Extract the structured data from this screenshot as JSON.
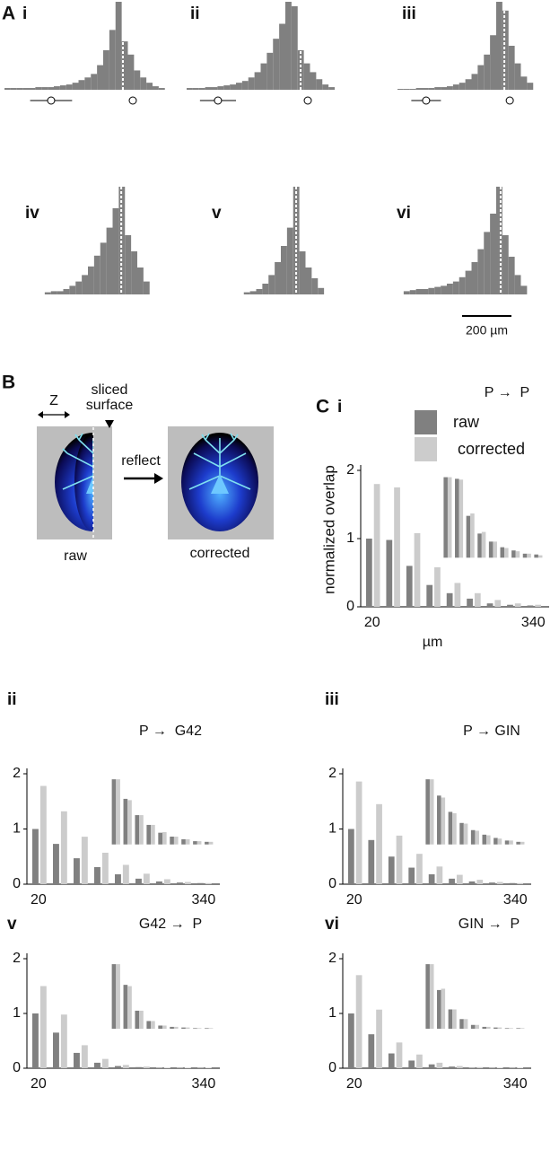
{
  "labels": [
    "A",
    "B",
    "C"
  ],
  "scale_bar": {
    "value": 200,
    "label": "200 µm"
  },
  "diagram": {
    "z": "Z",
    "sliced": "sliced",
    "surface": "surface",
    "reflect": "reflect",
    "raw": "raw",
    "corrected": "corrected"
  },
  "chart_data": [
    {
      "type": "histogram",
      "panel": "i",
      "color": "#808080",
      "bins": [
        0,
        25,
        50,
        75,
        100,
        125,
        150,
        175,
        200,
        225,
        250,
        275,
        300,
        325,
        350,
        375,
        400,
        425,
        450,
        475,
        500,
        525,
        550,
        575,
        600,
        625,
        650,
        675,
        700
      ],
      "values": [
        2,
        2,
        2,
        2,
        2,
        3,
        3,
        3,
        4,
        5,
        6,
        8,
        11,
        14,
        18,
        28,
        45,
        68,
        100,
        55,
        40,
        22,
        14,
        8,
        4,
        2,
        0,
        0
      ],
      "surface": 480,
      "markers": [
        {
          "value": 189,
          "error": 85
        },
        {
          "value": 520,
          "error": 10
        }
      ]
    },
    {
      "type": "histogram",
      "panel": "ii",
      "color": "#808080",
      "bins": [
        0,
        25,
        50,
        75,
        100,
        125,
        150,
        175,
        200,
        225,
        250,
        275,
        300,
        325,
        350,
        375,
        400,
        425,
        450,
        475,
        500,
        525,
        550,
        575,
        600,
        625,
        650,
        675,
        700
      ],
      "values": [
        2,
        2,
        2,
        3,
        3,
        4,
        5,
        6,
        8,
        10,
        14,
        20,
        30,
        42,
        58,
        75,
        100,
        95,
        45,
        30,
        20,
        12,
        6,
        3,
        0,
        0,
        0,
        0
      ],
      "surface": 462,
      "markers": [
        {
          "value": 127,
          "error": 73
        },
        {
          "value": 491,
          "error": 10
        }
      ]
    },
    {
      "type": "histogram",
      "panel": "iii",
      "color": "#808080",
      "bins": [
        0,
        25,
        50,
        75,
        100,
        125,
        150,
        175,
        200,
        225,
        250,
        275,
        300,
        325,
        350,
        375,
        400,
        425,
        450,
        475,
        500,
        525,
        550,
        575,
        600,
        625,
        650,
        675,
        700
      ],
      "values": [
        1,
        1,
        1,
        2,
        2,
        2,
        3,
        3,
        4,
        6,
        8,
        12,
        18,
        28,
        40,
        62,
        100,
        90,
        50,
        30,
        15,
        8,
        0,
        0,
        0,
        0,
        0,
        0
      ],
      "surface": 433,
      "markers": [
        {
          "value": 116,
          "error": 60
        },
        {
          "value": 455,
          "error": 10
        }
      ]
    },
    {
      "type": "histogram",
      "panel": "iv",
      "color": "#808080",
      "bins": [
        0,
        25,
        50,
        75,
        100,
        125,
        150,
        175,
        200,
        225,
        250,
        275,
        300,
        325,
        350,
        375,
        400,
        425,
        450,
        475,
        500,
        525,
        550,
        575,
        600,
        625,
        650,
        675,
        700
      ],
      "values": [
        0,
        2,
        3,
        3,
        5,
        8,
        12,
        18,
        26,
        36,
        48,
        62,
        80,
        100,
        55,
        40,
        25,
        12,
        0,
        0,
        0,
        0,
        0,
        0,
        0,
        0,
        0,
        0
      ],
      "surface": 335
    },
    {
      "type": "histogram",
      "panel": "v",
      "color": "#808080",
      "bins": [
        0,
        25,
        50,
        75,
        100,
        125,
        150,
        175,
        200,
        225,
        250,
        275,
        300,
        325,
        350,
        375,
        400,
        425,
        450,
        475,
        500,
        525,
        550,
        575,
        600,
        625,
        650,
        675,
        700
      ],
      "values": [
        0,
        0,
        2,
        3,
        5,
        10,
        18,
        30,
        45,
        62,
        100,
        40,
        25,
        15,
        6,
        0,
        0,
        0,
        0,
        0,
        0,
        0,
        0,
        0,
        0,
        0,
        0,
        0
      ],
      "surface": 262
    },
    {
      "type": "histogram",
      "panel": "vi",
      "color": "#808080",
      "bins": [
        0,
        25,
        50,
        75,
        100,
        125,
        150,
        175,
        200,
        225,
        250,
        275,
        300,
        325,
        350,
        375,
        400,
        425,
        450,
        475,
        500,
        525,
        550,
        575,
        600,
        625,
        650,
        675,
        700
      ],
      "values": [
        0,
        3,
        4,
        5,
        5,
        6,
        7,
        8,
        10,
        12,
        16,
        22,
        30,
        42,
        58,
        75,
        100,
        55,
        35,
        18,
        8,
        0,
        0,
        0,
        0,
        0,
        0,
        0
      ],
      "surface": 418
    },
    {
      "type": "bar",
      "panel": "i",
      "title": "P →  P",
      "ylabel": "normalized overlap",
      "xlabel": "µm",
      "categories": [
        20,
        null,
        null,
        null,
        null,
        null,
        null,
        null,
        340
      ],
      "ylim": [
        0,
        2
      ],
      "yticks": [
        0,
        1,
        2
      ],
      "series": [
        {
          "name": "raw",
          "color": "#808080",
          "values": [
            1.0,
            0.98,
            0.6,
            0.32,
            0.2,
            0.12,
            0.05,
            0.03,
            0.02
          ]
        },
        {
          "name": "corrected",
          "color": "#cccccc",
          "values": [
            1.8,
            1.75,
            1.08,
            0.58,
            0.35,
            0.2,
            0.1,
            0.05,
            0.03
          ]
        }
      ],
      "inset": [
        {
          "values": [
            1,
            0.98,
            0.52,
            0.3,
            0.2,
            0.13,
            0.09,
            0.05,
            0.04
          ]
        },
        {
          "values": [
            1,
            0.97,
            0.55,
            0.32,
            0.2,
            0.12,
            0.08,
            0.05,
            0.03
          ]
        }
      ]
    },
    {
      "type": "bar",
      "panel": "ii",
      "title": "P →  G42",
      "categories": [
        20,
        null,
        null,
        null,
        null,
        null,
        null,
        null,
        340
      ],
      "ylim": [
        0,
        2
      ],
      "yticks": [
        0,
        1,
        2
      ],
      "series": [
        {
          "color": "#808080",
          "values": [
            1.0,
            0.73,
            0.47,
            0.31,
            0.18,
            0.1,
            0.05,
            0.03,
            0.02
          ]
        },
        {
          "color": "#cccccc",
          "values": [
            1.78,
            1.32,
            0.86,
            0.57,
            0.35,
            0.19,
            0.09,
            0.04,
            0.02
          ]
        }
      ],
      "inset": [
        {
          "values": [
            1,
            0.7,
            0.45,
            0.3,
            0.18,
            0.12,
            0.08,
            0.05,
            0.04
          ]
        },
        {
          "values": [
            1,
            0.68,
            0.45,
            0.3,
            0.19,
            0.12,
            0.08,
            0.05,
            0.04
          ]
        }
      ]
    },
    {
      "type": "bar",
      "panel": "iii",
      "title": "P → GIN",
      "categories": [
        20,
        null,
        null,
        null,
        null,
        null,
        null,
        null,
        340
      ],
      "ylim": [
        0,
        2
      ],
      "yticks": [
        0,
        1,
        2
      ],
      "series": [
        {
          "color": "#808080",
          "values": [
            1.0,
            0.8,
            0.5,
            0.3,
            0.18,
            0.1,
            0.05,
            0.03,
            0.02
          ]
        },
        {
          "color": "#cccccc",
          "values": [
            1.86,
            1.45,
            0.88,
            0.55,
            0.32,
            0.17,
            0.08,
            0.04,
            0.02
          ]
        }
      ],
      "inset": [
        {
          "values": [
            1,
            0.75,
            0.5,
            0.33,
            0.22,
            0.15,
            0.1,
            0.06,
            0.04
          ]
        },
        {
          "values": [
            1,
            0.72,
            0.48,
            0.32,
            0.21,
            0.14,
            0.09,
            0.06,
            0.04
          ]
        }
      ]
    },
    {
      "type": "bar",
      "panel": "v",
      "title": "G42 →  P",
      "categories": [
        20,
        null,
        null,
        null,
        null,
        null,
        null,
        null,
        340
      ],
      "ylim": [
        0,
        2
      ],
      "yticks": [
        0,
        1,
        2
      ],
      "series": [
        {
          "color": "#808080",
          "values": [
            1.0,
            0.65,
            0.28,
            0.1,
            0.04,
            0.02,
            0.01,
            0.01,
            0.01
          ]
        },
        {
          "color": "#cccccc",
          "values": [
            1.5,
            0.98,
            0.42,
            0.17,
            0.06,
            0.03,
            0.01,
            0.01,
            0.01
          ]
        }
      ],
      "inset": [
        {
          "values": [
            1,
            0.68,
            0.28,
            0.12,
            0.05,
            0.03,
            0.02,
            0.01,
            0.01
          ]
        },
        {
          "values": [
            1,
            0.66,
            0.28,
            0.12,
            0.05,
            0.03,
            0.02,
            0.01,
            0.01
          ]
        }
      ]
    },
    {
      "type": "bar",
      "panel": "vi",
      "title": "GIN →  P",
      "categories": [
        20,
        null,
        null,
        null,
        null,
        null,
        null,
        null,
        340
      ],
      "ylim": [
        0,
        2
      ],
      "yticks": [
        0,
        1,
        2
      ],
      "series": [
        {
          "color": "#808080",
          "values": [
            1.0,
            0.62,
            0.27,
            0.14,
            0.07,
            0.03,
            0.01,
            0.01,
            0.01
          ]
        },
        {
          "color": "#cccccc",
          "values": [
            1.7,
            1.07,
            0.47,
            0.25,
            0.1,
            0.04,
            0.02,
            0.01,
            0.01
          ]
        }
      ],
      "inset": [
        {
          "values": [
            1,
            0.6,
            0.3,
            0.15,
            0.06,
            0.03,
            0.02,
            0.01,
            0.01
          ]
        },
        {
          "values": [
            1,
            0.62,
            0.3,
            0.15,
            0.06,
            0.03,
            0.02,
            0.01,
            0.01
          ]
        }
      ]
    }
  ]
}
